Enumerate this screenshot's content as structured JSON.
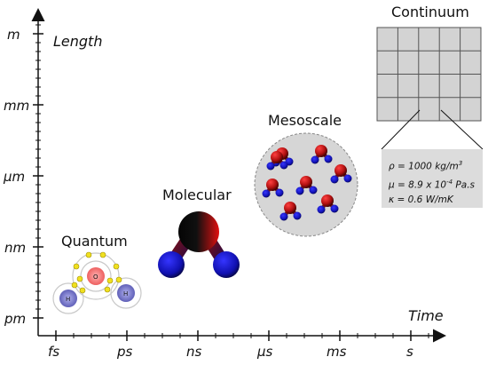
{
  "axes": {
    "y_title": "Length",
    "x_title": "Time",
    "y_ticks": [
      "m",
      "mm",
      "µm",
      "nm",
      "pm"
    ],
    "x_ticks": [
      "fs",
      "ps",
      "ns",
      "µs",
      "ms",
      "s"
    ]
  },
  "scales": {
    "quantum": "Quantum",
    "molecular": "Molecular",
    "mesoscale": "Mesoscale",
    "continuum": "Continuum"
  },
  "atoms": {
    "oxygen": "O",
    "hydrogen": "H"
  },
  "properties": {
    "density": "ρ = 1000 kg/m",
    "density_exp": "3",
    "viscosity_pre": "μ = 8.9 x 10",
    "viscosity_exp": "-4",
    "viscosity_post": " Pa.s",
    "conductivity": "κ = 0.6 W/mK"
  },
  "colors": {
    "oxygen_red": "#cc1f1f",
    "hydrogen_blue": "#1a1ab8",
    "grid_fill": "#d3d3d3",
    "mesoscale_fill": "#d6d6d6",
    "electron_yellow": "#f0e020"
  }
}
